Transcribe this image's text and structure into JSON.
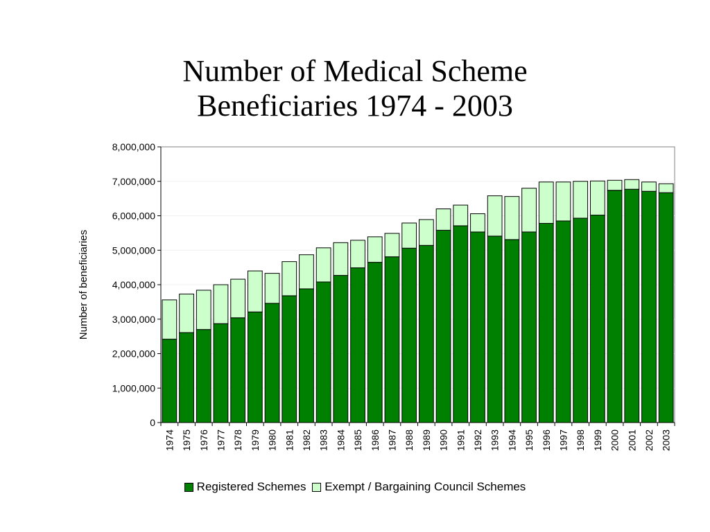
{
  "title": {
    "line1": "Number of Medical Scheme",
    "line2": "Beneficiaries 1974 - 2003"
  },
  "chart_data": {
    "type": "bar",
    "stacked": true,
    "categories": [
      "1974",
      "1975",
      "1976",
      "1977",
      "1978",
      "1979",
      "1980",
      "1981",
      "1982",
      "1983",
      "1984",
      "1985",
      "1986",
      "1987",
      "1988",
      "1989",
      "1990",
      "1991",
      "1992",
      "1993",
      "1994",
      "1995",
      "1996",
      "1997",
      "1998",
      "1999",
      "2000",
      "2001",
      "2002",
      "2003"
    ],
    "series": [
      {
        "name": "Registered Schemes",
        "color": "#008000",
        "values": [
          2420000,
          2610000,
          2700000,
          2870000,
          3040000,
          3210000,
          3460000,
          3680000,
          3880000,
          4080000,
          4270000,
          4490000,
          4650000,
          4810000,
          5060000,
          5140000,
          5580000,
          5710000,
          5530000,
          5410000,
          5310000,
          5530000,
          5780000,
          5850000,
          5930000,
          6020000,
          6740000,
          6770000,
          6710000,
          6670000
        ]
      },
      {
        "name": "Exempt / Bargaining Council Schemes",
        "color": "#ccffcc",
        "values": [
          1140000,
          1120000,
          1140000,
          1130000,
          1120000,
          1190000,
          870000,
          990000,
          990000,
          990000,
          950000,
          800000,
          740000,
          680000,
          730000,
          750000,
          620000,
          600000,
          530000,
          1170000,
          1250000,
          1270000,
          1200000,
          1130000,
          1070000,
          990000,
          290000,
          280000,
          270000,
          260000
        ]
      }
    ],
    "ylabel": "Number of beneficiaries",
    "xlabel": "",
    "ylim": [
      0,
      8000000
    ],
    "yticks": [
      "0",
      "1,000,000",
      "2,000,000",
      "3,000,000",
      "4,000,000",
      "5,000,000",
      "6,000,000",
      "7,000,000",
      "8,000,000"
    ],
    "grid": true,
    "legend_position": "bottom"
  }
}
